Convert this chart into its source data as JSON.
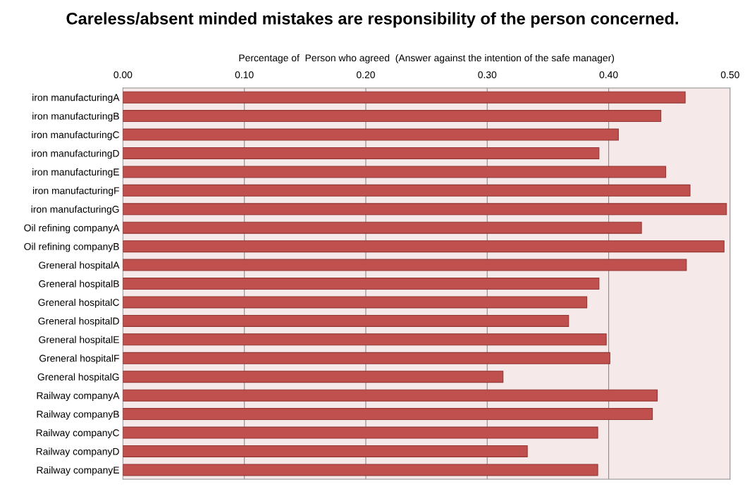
{
  "chart_data": {
    "type": "bar",
    "orientation": "horizontal",
    "title": "Careless/absent minded mistakes are responsibility of the person concerned.",
    "xlabel": "Percentage of  Person who agreed  (Answer against the intention of the safe manager)",
    "categories": [
      "iron manufacturingA",
      "iron manufacturingB",
      "iron manufacturingC",
      "iron manufacturingD",
      "iron manufacturingE",
      "iron manufacturingF",
      "iron manufacturingG",
      "Oil refining companyA",
      "Oil refining companyB",
      "Greneral hospitalA",
      "Greneral hospitalB",
      "Greneral hospitalC",
      "Greneral hospitalD",
      "Greneral hospitalE",
      "Greneral hospitalF",
      "Greneral hospitalG",
      "Railway companyA",
      "Railway companyB",
      "Railway companyC",
      "Railway companyD",
      "Railway companyE"
    ],
    "values": [
      0.463,
      0.443,
      0.408,
      0.392,
      0.447,
      0.467,
      0.497,
      0.427,
      0.495,
      0.464,
      0.392,
      0.382,
      0.367,
      0.398,
      0.401,
      0.313,
      0.44,
      0.436,
      0.391,
      0.333,
      0.391
    ],
    "color": "#c0504d",
    "xlim": [
      0,
      0.5
    ],
    "xticks": [
      {
        "value": 0,
        "label": "0.00"
      },
      {
        "value": 0.1,
        "label": "0.10"
      },
      {
        "value": 0.2,
        "label": "0.20"
      },
      {
        "value": 0.3,
        "label": "0.30"
      },
      {
        "value": 0.4,
        "label": "0.40"
      },
      {
        "value": 0.5,
        "label": "0.50"
      }
    ],
    "grid": "x"
  }
}
